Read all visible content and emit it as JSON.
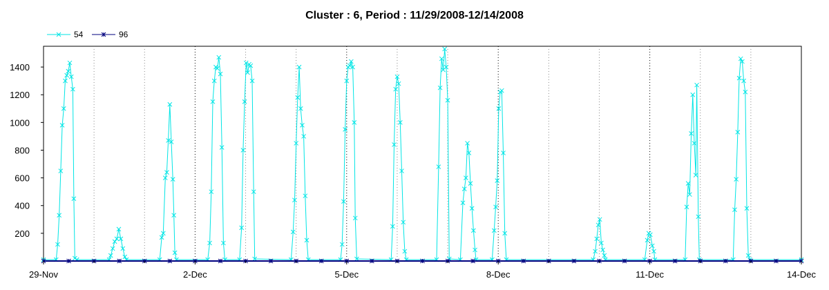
{
  "chart_data": {
    "type": "line",
    "title": "Cluster : 6, Period : 11/29/2008-12/14/2008",
    "xlabel": "",
    "ylabel": "",
    "x_unit": "days from 29-Nov",
    "xlim": [
      0,
      15
    ],
    "ylim": [
      0,
      1550
    ],
    "x_ticks": [
      {
        "value": 0,
        "label": "29-Nov"
      },
      {
        "value": 3,
        "label": "2-Dec"
      },
      {
        "value": 6,
        "label": "5-Dec"
      },
      {
        "value": 9,
        "label": "8-Dec"
      },
      {
        "value": 12,
        "label": "11-Dec"
      },
      {
        "value": 15,
        "label": "14-Dec"
      }
    ],
    "minor_x_ticks": [
      1,
      2,
      4,
      5,
      7,
      8,
      10,
      11,
      13,
      14
    ],
    "y_ticks": [
      200,
      400,
      600,
      800,
      1000,
      1200,
      1400
    ],
    "legend_position": "top-left",
    "grid": "vertical dotted lines at each day",
    "series": [
      {
        "name": "54",
        "color": "#00e5e5",
        "marker": "x",
        "points": [
          [
            0.0,
            10
          ],
          [
            0.25,
            10
          ],
          [
            0.28,
            120
          ],
          [
            0.31,
            330
          ],
          [
            0.34,
            650
          ],
          [
            0.37,
            980
          ],
          [
            0.4,
            1100
          ],
          [
            0.43,
            1300
          ],
          [
            0.46,
            1340
          ],
          [
            0.49,
            1370
          ],
          [
            0.52,
            1430
          ],
          [
            0.55,
            1330
          ],
          [
            0.58,
            1240
          ],
          [
            0.6,
            450
          ],
          [
            0.62,
            20
          ],
          [
            0.66,
            10
          ],
          [
            1.3,
            10
          ],
          [
            1.33,
            40
          ],
          [
            1.37,
            90
          ],
          [
            1.41,
            140
          ],
          [
            1.45,
            160
          ],
          [
            1.49,
            230
          ],
          [
            1.53,
            160
          ],
          [
            1.57,
            90
          ],
          [
            1.61,
            30
          ],
          [
            1.64,
            10
          ],
          [
            2.3,
            10
          ],
          [
            2.34,
            170
          ],
          [
            2.37,
            200
          ],
          [
            2.41,
            600
          ],
          [
            2.44,
            640
          ],
          [
            2.47,
            870
          ],
          [
            2.5,
            1130
          ],
          [
            2.53,
            860
          ],
          [
            2.56,
            590
          ],
          [
            2.58,
            330
          ],
          [
            2.6,
            60
          ],
          [
            2.63,
            10
          ],
          [
            3.25,
            10
          ],
          [
            3.29,
            130
          ],
          [
            3.32,
            500
          ],
          [
            3.35,
            1150
          ],
          [
            3.38,
            1300
          ],
          [
            3.41,
            1400
          ],
          [
            3.44,
            1390
          ],
          [
            3.47,
            1470
          ],
          [
            3.5,
            1350
          ],
          [
            3.53,
            820
          ],
          [
            3.56,
            130
          ],
          [
            3.59,
            10
          ],
          [
            3.88,
            10
          ],
          [
            3.92,
            240
          ],
          [
            3.95,
            800
          ],
          [
            3.98,
            1150
          ],
          [
            4.01,
            1430
          ],
          [
            4.04,
            1360
          ],
          [
            4.07,
            1420
          ],
          [
            4.1,
            1410
          ],
          [
            4.13,
            1300
          ],
          [
            4.16,
            500
          ],
          [
            4.18,
            15
          ],
          [
            4.9,
            10
          ],
          [
            4.94,
            210
          ],
          [
            4.97,
            440
          ],
          [
            5.0,
            850
          ],
          [
            5.03,
            1180
          ],
          [
            5.06,
            1400
          ],
          [
            5.09,
            1100
          ],
          [
            5.12,
            980
          ],
          [
            5.15,
            900
          ],
          [
            5.18,
            470
          ],
          [
            5.21,
            150
          ],
          [
            5.24,
            10
          ],
          [
            5.88,
            10
          ],
          [
            5.91,
            120
          ],
          [
            5.94,
            430
          ],
          [
            5.97,
            950
          ],
          [
            6.0,
            1300
          ],
          [
            6.03,
            1400
          ],
          [
            6.06,
            1410
          ],
          [
            6.09,
            1440
          ],
          [
            6.12,
            1400
          ],
          [
            6.15,
            1000
          ],
          [
            6.17,
            310
          ],
          [
            6.2,
            15
          ],
          [
            6.88,
            10
          ],
          [
            6.91,
            250
          ],
          [
            6.94,
            840
          ],
          [
            6.97,
            1240
          ],
          [
            7.0,
            1330
          ],
          [
            7.03,
            1280
          ],
          [
            7.06,
            1000
          ],
          [
            7.09,
            650
          ],
          [
            7.12,
            280
          ],
          [
            7.15,
            70
          ],
          [
            7.18,
            10
          ],
          [
            7.78,
            10
          ],
          [
            7.82,
            680
          ],
          [
            7.85,
            1250
          ],
          [
            7.88,
            1460
          ],
          [
            7.91,
            1380
          ],
          [
            7.94,
            1530
          ],
          [
            7.97,
            1400
          ],
          [
            8.0,
            1160
          ],
          [
            8.03,
            15
          ],
          [
            8.25,
            10
          ],
          [
            8.3,
            420
          ],
          [
            8.33,
            520
          ],
          [
            8.36,
            600
          ],
          [
            8.39,
            850
          ],
          [
            8.42,
            780
          ],
          [
            8.45,
            560
          ],
          [
            8.48,
            380
          ],
          [
            8.51,
            220
          ],
          [
            8.54,
            80
          ],
          [
            8.56,
            10
          ],
          [
            8.88,
            10
          ],
          [
            8.92,
            220
          ],
          [
            8.95,
            390
          ],
          [
            8.98,
            580
          ],
          [
            9.01,
            1100
          ],
          [
            9.04,
            1220
          ],
          [
            9.07,
            1230
          ],
          [
            9.1,
            780
          ],
          [
            9.13,
            200
          ],
          [
            9.16,
            10
          ],
          [
            10.88,
            10
          ],
          [
            10.92,
            70
          ],
          [
            10.95,
            160
          ],
          [
            10.98,
            260
          ],
          [
            11.01,
            300
          ],
          [
            11.04,
            130
          ],
          [
            11.07,
            80
          ],
          [
            11.1,
            40
          ],
          [
            11.12,
            10
          ],
          [
            11.9,
            10
          ],
          [
            11.95,
            150
          ],
          [
            11.98,
            200
          ],
          [
            12.01,
            190
          ],
          [
            12.05,
            110
          ],
          [
            12.08,
            70
          ],
          [
            12.1,
            10
          ],
          [
            12.7,
            10
          ],
          [
            12.73,
            390
          ],
          [
            12.76,
            560
          ],
          [
            12.79,
            480
          ],
          [
            12.82,
            920
          ],
          [
            12.85,
            1200
          ],
          [
            12.88,
            850
          ],
          [
            12.91,
            620
          ],
          [
            12.93,
            1270
          ],
          [
            12.96,
            320
          ],
          [
            12.98,
            10
          ],
          [
            13.65,
            10
          ],
          [
            13.68,
            370
          ],
          [
            13.71,
            590
          ],
          [
            13.74,
            930
          ],
          [
            13.77,
            1320
          ],
          [
            13.8,
            1460
          ],
          [
            13.83,
            1440
          ],
          [
            13.86,
            1300
          ],
          [
            13.89,
            1220
          ],
          [
            13.92,
            380
          ],
          [
            13.95,
            40
          ],
          [
            13.98,
            10
          ],
          [
            15.0,
            10
          ]
        ]
      },
      {
        "name": "96",
        "color": "#00007f",
        "marker": "*",
        "points": [
          [
            0,
            0
          ],
          [
            0.5,
            0
          ],
          [
            1,
            0
          ],
          [
            1.5,
            0
          ],
          [
            2,
            0
          ],
          [
            2.5,
            0
          ],
          [
            3,
            0
          ],
          [
            3.5,
            0
          ],
          [
            4,
            0
          ],
          [
            4.5,
            0
          ],
          [
            5,
            0
          ],
          [
            5.5,
            0
          ],
          [
            6,
            0
          ],
          [
            6.5,
            0
          ],
          [
            7,
            0
          ],
          [
            7.5,
            0
          ],
          [
            8,
            0
          ],
          [
            8.5,
            0
          ],
          [
            9,
            0
          ],
          [
            9.5,
            0
          ],
          [
            10,
            0
          ],
          [
            10.5,
            0
          ],
          [
            11,
            0
          ],
          [
            11.5,
            0
          ],
          [
            12,
            0
          ],
          [
            12.5,
            0
          ],
          [
            13,
            0
          ],
          [
            13.5,
            0
          ],
          [
            14,
            0
          ],
          [
            14.5,
            0
          ],
          [
            15,
            0
          ]
        ]
      }
    ]
  }
}
